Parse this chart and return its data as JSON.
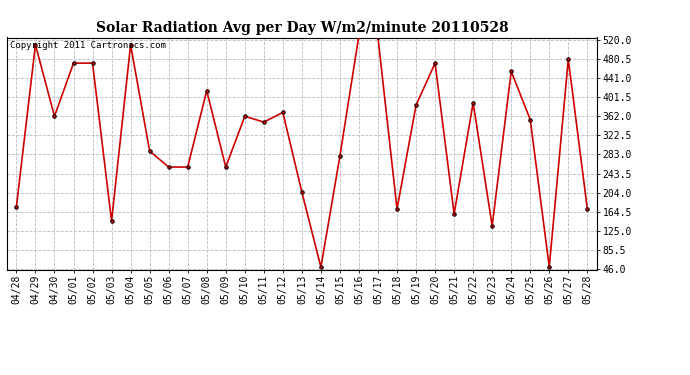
{
  "title": "Solar Radiation Avg per Day W/m2/minute 20110528",
  "copyright": "Copyright 2011 Cartronics.com",
  "labels": [
    "04/28",
    "04/29",
    "04/30",
    "05/01",
    "05/02",
    "05/03",
    "05/04",
    "05/05",
    "05/06",
    "05/07",
    "05/08",
    "05/09",
    "05/10",
    "05/11",
    "05/12",
    "05/13",
    "05/14",
    "05/15",
    "05/16",
    "05/17",
    "05/18",
    "05/19",
    "05/20",
    "05/21",
    "05/22",
    "05/23",
    "05/24",
    "05/25",
    "05/26",
    "05/27",
    "05/28"
  ],
  "values": [
    175,
    510,
    362,
    472,
    472,
    145,
    510,
    290,
    257,
    257,
    415,
    257,
    362,
    350,
    370,
    205,
    50,
    280,
    530,
    525,
    170,
    385,
    472,
    160,
    390,
    135,
    455,
    355,
    50,
    480,
    170
  ],
  "line_color": "#cc0000",
  "marker_color": "#000000",
  "bg_color": "#ffffff",
  "grid_color": "#bbbbbb",
  "yticks": [
    46.0,
    85.5,
    125.0,
    164.5,
    204.0,
    243.5,
    283.0,
    322.5,
    362.0,
    401.5,
    441.0,
    480.5,
    520.0
  ],
  "ymin": 46.0,
  "ymax": 520.0,
  "title_fontsize": 10,
  "tick_fontsize": 7,
  "copyright_fontsize": 6.5
}
